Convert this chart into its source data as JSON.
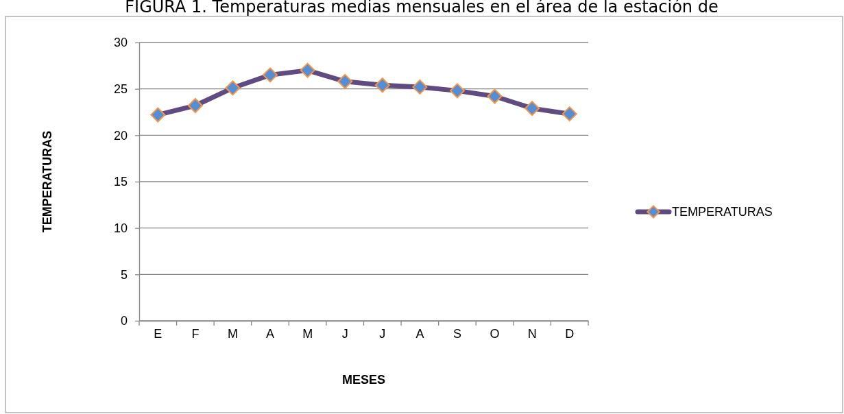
{
  "chart_data": {
    "type": "line",
    "title": "FIGURA 1. Temperaturas medias mensuales en el área de la estación de",
    "xlabel": "MESES",
    "ylabel": "TEMPERATURAS",
    "categories": [
      "E",
      "F",
      "M",
      "A",
      "M",
      "J",
      "J",
      "A",
      "S",
      "O",
      "N",
      "D"
    ],
    "series": [
      {
        "name": "TEMPERATURAS",
        "color": "#5f4b7f",
        "colors": [
          "#558ed5",
          "#558ed5",
          "#558ed5",
          "#558ed5",
          "#558ed5",
          "#558ed5",
          "#558ed5",
          "#558ed5",
          "#558ed5",
          "#558ed5",
          "#558ed5",
          "#558ed5"
        ],
        "values": [
          22.2,
          23.2,
          25.1,
          26.5,
          27.0,
          25.8,
          25.4,
          25.2,
          24.8,
          24.2,
          22.9,
          22.3
        ]
      }
    ],
    "ylim": [
      0,
      30
    ],
    "yticks": [
      0,
      5,
      10,
      15,
      20,
      25,
      30
    ],
    "grid": "y",
    "legend": "right",
    "marker": "diamond",
    "line_style": "solid"
  }
}
